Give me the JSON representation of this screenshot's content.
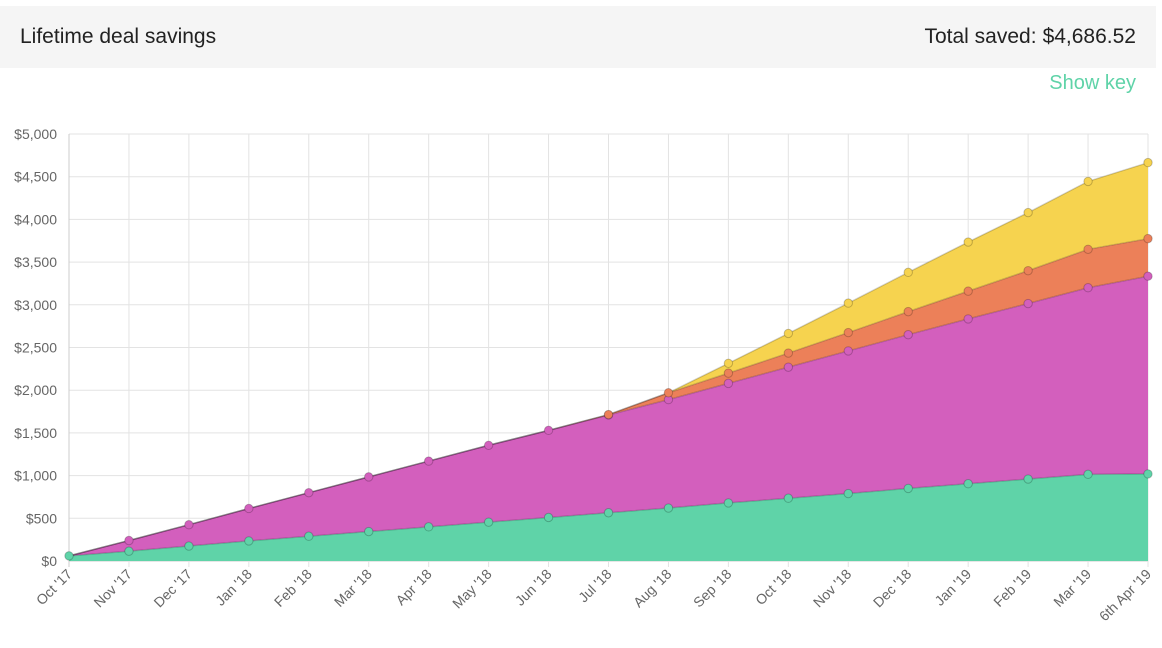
{
  "header": {
    "title": "Lifetime deal savings",
    "total_label": "Total saved:",
    "total_value": "$4,686.52"
  },
  "controls": {
    "show_key_label": "Show key"
  },
  "colors": {
    "green": "#5fd3a8",
    "magenta": "#d35fbd",
    "orange": "#ec8059",
    "yellow": "#f6d34f",
    "grid": "#e3e3e3",
    "axis": "#cccccc"
  },
  "chart_data": {
    "type": "area",
    "stacked": true,
    "categories": [
      "Oct '17",
      "Nov '17",
      "Dec '17",
      "Jan '18",
      "Feb '18",
      "Mar '18",
      "Apr '18",
      "May '18",
      "Jun '18",
      "Jul '18",
      "Aug '18",
      "Sep '18",
      "Oct '18",
      "Nov '18",
      "Dec '18",
      "Jan '19",
      "Feb '19",
      "Mar '19",
      "6th Apr '19"
    ],
    "ylim": [
      0,
      5000
    ],
    "yticks": [
      0,
      500,
      1000,
      1500,
      2000,
      2500,
      3000,
      3500,
      4000,
      4500,
      5000
    ],
    "ytick_labels": [
      "$0",
      "$500",
      "$1,000",
      "$1,500",
      "$2,000",
      "$2,500",
      "$3,000",
      "$3,500",
      "$4,000",
      "$4,500",
      "$5,000"
    ],
    "grid": true,
    "series": [
      {
        "color": "#5fd3a8",
        "values": [
          60,
          115,
          175,
          235,
          290,
          345,
          400,
          455,
          510,
          565,
          620,
          680,
          735,
          790,
          850,
          905,
          960,
          1015,
          1020
        ]
      },
      {
        "color": "#d35fbd",
        "values": [
          0,
          125,
          250,
          380,
          510,
          640,
          770,
          900,
          1020,
          1145,
          1270,
          1400,
          1535,
          1670,
          1800,
          1930,
          2055,
          2185,
          2315
        ]
      },
      {
        "color": "#ec8059",
        "values": [
          0,
          0,
          0,
          0,
          0,
          0,
          0,
          0,
          0,
          5,
          80,
          120,
          165,
          215,
          270,
          325,
          385,
          450,
          440
        ]
      },
      {
        "color": "#f6d34f",
        "values": [
          0,
          0,
          0,
          0,
          0,
          0,
          0,
          0,
          0,
          0,
          0,
          115,
          230,
          345,
          460,
          575,
          680,
          795,
          890
        ]
      }
    ]
  }
}
